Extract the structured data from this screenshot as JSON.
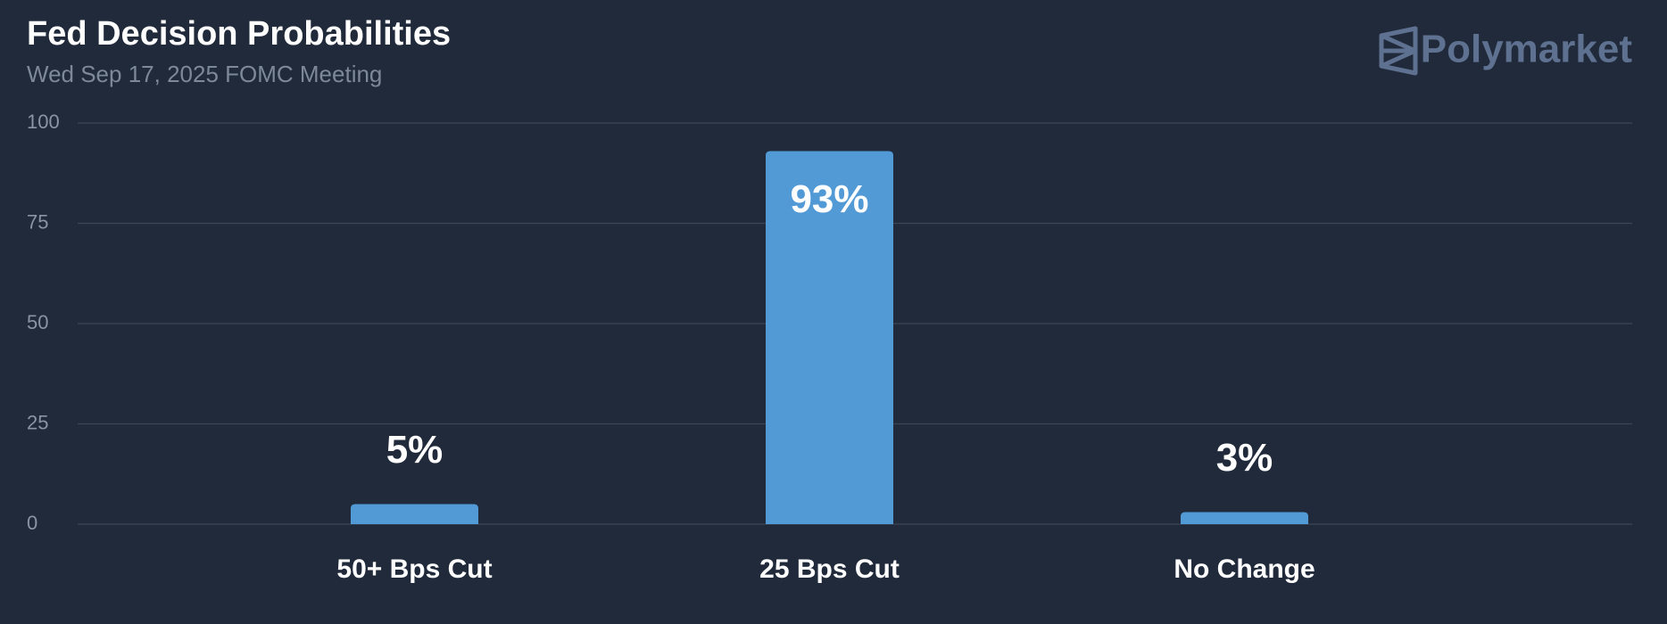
{
  "chart_data": {
    "type": "bar",
    "title": "Fed Decision Probabilities",
    "subtitle": "Wed Sep 17, 2025 FOMC Meeting",
    "categories": [
      "50+ Bps Cut",
      "25 Bps Cut",
      "No Change"
    ],
    "values": [
      5,
      93,
      3
    ],
    "value_labels": [
      "5%",
      "93%",
      "3%"
    ],
    "color": "#529ad6",
    "ylim": [
      0,
      100
    ],
    "yticks": [
      0,
      25,
      50,
      75,
      100
    ],
    "grid": true
  },
  "brand": "Polymarket"
}
